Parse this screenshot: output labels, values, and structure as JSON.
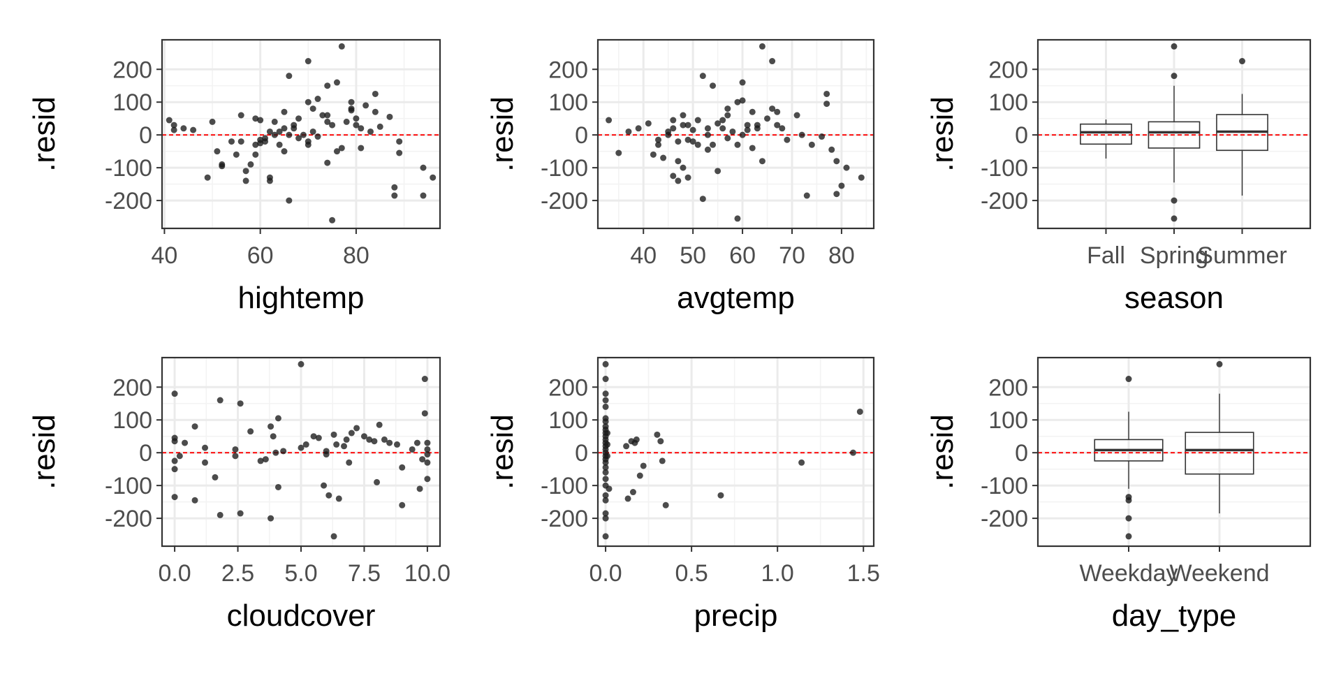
{
  "figure": {
    "reference_line_color": "#ff0000",
    "point_color": "#1a1a1a",
    "panel_background": "#ffffff",
    "grid_color": "#ebebeb"
  },
  "chart_data": [
    {
      "type": "scatter",
      "xlabel": "hightemp",
      "ylabel": ".resid",
      "xlim": [
        39.5,
        97.5
      ],
      "ylim": [
        -285,
        290
      ],
      "xticks": [
        40,
        60,
        80
      ],
      "yticks": [
        -200,
        -100,
        0,
        100,
        200
      ],
      "hline": 0,
      "points": [
        [
          41,
          45
        ],
        [
          42,
          30
        ],
        [
          42,
          15
        ],
        [
          44,
          20
        ],
        [
          46,
          15
        ],
        [
          49,
          -130
        ],
        [
          50,
          40
        ],
        [
          51,
          -50
        ],
        [
          52,
          -90
        ],
        [
          52,
          -95
        ],
        [
          54,
          -20
        ],
        [
          55,
          -60
        ],
        [
          56,
          -20
        ],
        [
          56,
          60
        ],
        [
          57,
          -110
        ],
        [
          57,
          -140
        ],
        [
          58,
          -90
        ],
        [
          59,
          -60
        ],
        [
          59,
          -30
        ],
        [
          59,
          50
        ],
        [
          60,
          45
        ],
        [
          60,
          -15
        ],
        [
          60,
          -25
        ],
        [
          61,
          -20
        ],
        [
          61,
          -10
        ],
        [
          62,
          10
        ],
        [
          62,
          -130
        ],
        [
          62,
          -140
        ],
        [
          63,
          0
        ],
        [
          63,
          40
        ],
        [
          64,
          -30
        ],
        [
          64,
          10
        ],
        [
          65,
          -50
        ],
        [
          65,
          20
        ],
        [
          65,
          70
        ],
        [
          66,
          -200
        ],
        [
          66,
          180
        ],
        [
          66,
          0
        ],
        [
          67,
          30
        ],
        [
          67,
          20
        ],
        [
          68,
          50
        ],
        [
          68,
          -10
        ],
        [
          69,
          0
        ],
        [
          70,
          225
        ],
        [
          70,
          -20
        ],
        [
          70,
          -30
        ],
        [
          70,
          100
        ],
        [
          71,
          80
        ],
        [
          71,
          10
        ],
        [
          72,
          -5
        ],
        [
          72,
          110
        ],
        [
          73,
          60
        ],
        [
          74,
          60
        ],
        [
          74,
          40
        ],
        [
          74,
          -85
        ],
        [
          74,
          150
        ],
        [
          75,
          -260
        ],
        [
          75,
          30
        ],
        [
          76,
          -50
        ],
        [
          76,
          160
        ],
        [
          77,
          -40
        ],
        [
          77,
          270
        ],
        [
          78,
          40
        ],
        [
          79,
          80
        ],
        [
          79,
          100
        ],
        [
          79,
          75
        ],
        [
          80,
          50
        ],
        [
          80,
          30
        ],
        [
          81,
          -40
        ],
        [
          81,
          20
        ],
        [
          82,
          90
        ],
        [
          83,
          10
        ],
        [
          84,
          125
        ],
        [
          84,
          70
        ],
        [
          85,
          25
        ],
        [
          87,
          55
        ],
        [
          88,
          -160
        ],
        [
          88,
          -185
        ],
        [
          89,
          -20
        ],
        [
          89,
          -55
        ],
        [
          94,
          -100
        ],
        [
          94,
          -185
        ],
        [
          96,
          -130
        ]
      ]
    },
    {
      "type": "scatter",
      "xlabel": "avgtemp",
      "ylabel": ".resid",
      "xlim": [
        30.8,
        86.5
      ],
      "ylim": [
        -285,
        290
      ],
      "xticks": [
        40,
        50,
        60,
        70,
        80
      ],
      "yticks": [
        -200,
        -100,
        0,
        100,
        200
      ],
      "hline": 0,
      "points": [
        [
          33,
          45
        ],
        [
          35,
          -55
        ],
        [
          37,
          10
        ],
        [
          39,
          20
        ],
        [
          41,
          35
        ],
        [
          42,
          -60
        ],
        [
          43,
          -15
        ],
        [
          43,
          -30
        ],
        [
          44,
          -70
        ],
        [
          45,
          10
        ],
        [
          45,
          0
        ],
        [
          46,
          -125
        ],
        [
          46,
          20
        ],
        [
          46,
          45
        ],
        [
          47,
          -20
        ],
        [
          47,
          -80
        ],
        [
          47,
          -140
        ],
        [
          48,
          -100
        ],
        [
          48,
          30
        ],
        [
          48,
          60
        ],
        [
          49,
          30
        ],
        [
          49,
          -130
        ],
        [
          49,
          -15
        ],
        [
          50,
          15
        ],
        [
          50,
          -20
        ],
        [
          51,
          45
        ],
        [
          51,
          -30
        ],
        [
          52,
          180
        ],
        [
          52,
          -195
        ],
        [
          53,
          20
        ],
        [
          53,
          -45
        ],
        [
          53,
          0
        ],
        [
          54,
          150
        ],
        [
          54,
          -30
        ],
        [
          55,
          35
        ],
        [
          55,
          -110
        ],
        [
          56,
          45
        ],
        [
          56,
          20
        ],
        [
          57,
          80
        ],
        [
          57,
          60
        ],
        [
          57,
          -10
        ],
        [
          58,
          10
        ],
        [
          59,
          -255
        ],
        [
          59,
          -30
        ],
        [
          59,
          100
        ],
        [
          60,
          0
        ],
        [
          60,
          160
        ],
        [
          60,
          105
        ],
        [
          61,
          15
        ],
        [
          61,
          30
        ],
        [
          62,
          -40
        ],
        [
          62,
          70
        ],
        [
          63,
          30
        ],
        [
          63,
          20
        ],
        [
          64,
          270
        ],
        [
          64,
          -80
        ],
        [
          65,
          50
        ],
        [
          66,
          80
        ],
        [
          66,
          225
        ],
        [
          67,
          30
        ],
        [
          67,
          70
        ],
        [
          68,
          20
        ],
        [
          69,
          -15
        ],
        [
          71,
          60
        ],
        [
          72,
          0
        ],
        [
          73,
          -185
        ],
        [
          74,
          -30
        ],
        [
          76,
          -5
        ],
        [
          77,
          95
        ],
        [
          77,
          125
        ],
        [
          78,
          -45
        ],
        [
          79,
          -180
        ],
        [
          79,
          -80
        ],
        [
          80,
          -155
        ],
        [
          81,
          -100
        ],
        [
          84,
          -130
        ]
      ]
    },
    {
      "type": "box",
      "xlabel": "season",
      "ylabel": ".resid",
      "ylim": [
        -285,
        290
      ],
      "yticks": [
        -200,
        -100,
        0,
        100,
        200
      ],
      "hline": 0,
      "categories": [
        "Fall",
        "Spring",
        "Summer"
      ],
      "boxes": [
        {
          "q1": -28,
          "median": 8,
          "q3": 33,
          "lower": -72,
          "upper": 47,
          "outliers": []
        },
        {
          "q1": -40,
          "median": 8,
          "q3": 40,
          "lower": -145,
          "upper": 150,
          "outliers": [
            270,
            180,
            -200,
            -255
          ]
        },
        {
          "q1": -47,
          "median": 10,
          "q3": 62,
          "lower": -185,
          "upper": 125,
          "outliers": [
            225
          ]
        }
      ]
    },
    {
      "type": "scatter",
      "xlabel": "cloudcover",
      "ylabel": ".resid",
      "xlim": [
        -0.5,
        10.5
      ],
      "ylim": [
        -285,
        290
      ],
      "xticks": [
        0.0,
        2.5,
        5.0,
        7.5,
        10.0
      ],
      "xticklabels": [
        "0.0",
        "2.5",
        "5.0",
        "7.5",
        "10.0"
      ],
      "yticks": [
        -200,
        -100,
        0,
        100,
        200
      ],
      "hline": 0,
      "points": [
        [
          0,
          180
        ],
        [
          0,
          45
        ],
        [
          0,
          35
        ],
        [
          0,
          -25
        ],
        [
          0,
          -50
        ],
        [
          0,
          -135
        ],
        [
          0.2,
          -10
        ],
        [
          0.4,
          30
        ],
        [
          0.8,
          80
        ],
        [
          0.8,
          -145
        ],
        [
          1.2,
          15
        ],
        [
          1.2,
          -30
        ],
        [
          1.6,
          -75
        ],
        [
          1.8,
          160
        ],
        [
          1.8,
          -190
        ],
        [
          2.4,
          10
        ],
        [
          2.4,
          -10
        ],
        [
          2.6,
          150
        ],
        [
          2.6,
          -185
        ],
        [
          3,
          65
        ],
        [
          3.4,
          -25
        ],
        [
          3.6,
          -20
        ],
        [
          3.8,
          80
        ],
        [
          3.8,
          -200
        ],
        [
          3.9,
          50
        ],
        [
          4,
          0
        ],
        [
          4.1,
          105
        ],
        [
          4.1,
          -105
        ],
        [
          4.3,
          5
        ],
        [
          5,
          270
        ],
        [
          5,
          15
        ],
        [
          5.2,
          25
        ],
        [
          5.5,
          50
        ],
        [
          5.7,
          45
        ],
        [
          5.9,
          -100
        ],
        [
          6,
          -5
        ],
        [
          6,
          5
        ],
        [
          6.1,
          -130
        ],
        [
          6.3,
          55
        ],
        [
          6.3,
          -255
        ],
        [
          6.4,
          25
        ],
        [
          6.5,
          -140
        ],
        [
          6.7,
          20
        ],
        [
          6.8,
          40
        ],
        [
          6.9,
          -30
        ],
        [
          7,
          60
        ],
        [
          7.2,
          75
        ],
        [
          7.5,
          50
        ],
        [
          7.7,
          40
        ],
        [
          7.9,
          35
        ],
        [
          8,
          -90
        ],
        [
          8.1,
          85
        ],
        [
          8.3,
          40
        ],
        [
          8.5,
          30
        ],
        [
          8.8,
          25
        ],
        [
          9,
          -160
        ],
        [
          9,
          -45
        ],
        [
          9.4,
          10
        ],
        [
          9.6,
          30
        ],
        [
          9.7,
          -110
        ],
        [
          9.8,
          -20
        ],
        [
          9.9,
          225
        ],
        [
          9.9,
          120
        ],
        [
          10,
          30
        ],
        [
          10,
          -5
        ],
        [
          10,
          -30
        ],
        [
          10,
          -80
        ],
        [
          10,
          10
        ]
      ]
    },
    {
      "type": "scatter",
      "xlabel": "precip",
      "ylabel": ".resid",
      "xlim": [
        -0.045,
        1.56
      ],
      "ylim": [
        -285,
        290
      ],
      "xticks": [
        0.0,
        0.5,
        1.0,
        1.5
      ],
      "xticklabels": [
        "0.0",
        "0.5",
        "1.0",
        "1.5"
      ],
      "yticks": [
        -200,
        -100,
        0,
        100,
        200
      ],
      "hline": 0,
      "points": [
        [
          0,
          270
        ],
        [
          0,
          225
        ],
        [
          0,
          180
        ],
        [
          0,
          160
        ],
        [
          0,
          140
        ],
        [
          0,
          105
        ],
        [
          0,
          95
        ],
        [
          0,
          80
        ],
        [
          0,
          70
        ],
        [
          0,
          60
        ],
        [
          0,
          50
        ],
        [
          0,
          40
        ],
        [
          0,
          30
        ],
        [
          0,
          20
        ],
        [
          0,
          10
        ],
        [
          0,
          0
        ],
        [
          0,
          -10
        ],
        [
          0,
          -20
        ],
        [
          0,
          -30
        ],
        [
          0,
          -45
        ],
        [
          0,
          -60
        ],
        [
          0,
          -80
        ],
        [
          0,
          -100
        ],
        [
          0,
          -130
        ],
        [
          0,
          -145
        ],
        [
          0,
          -185
        ],
        [
          0,
          -200
        ],
        [
          0,
          -255
        ],
        [
          0.01,
          60
        ],
        [
          0.01,
          -10
        ],
        [
          0.01,
          25
        ],
        [
          0.02,
          -110
        ],
        [
          0.12,
          20
        ],
        [
          0.13,
          -140
        ],
        [
          0.15,
          35
        ],
        [
          0.16,
          -120
        ],
        [
          0.17,
          30
        ],
        [
          0.18,
          40
        ],
        [
          0.2,
          -70
        ],
        [
          0.22,
          -40
        ],
        [
          0.3,
          55
        ],
        [
          0.32,
          35
        ],
        [
          0.33,
          -25
        ],
        [
          0.35,
          -160
        ],
        [
          0.67,
          -130
        ],
        [
          1.14,
          -30
        ],
        [
          1.44,
          0
        ],
        [
          1.48,
          125
        ]
      ]
    },
    {
      "type": "box",
      "xlabel": "day_type",
      "ylabel": ".resid",
      "ylim": [
        -285,
        290
      ],
      "yticks": [
        -200,
        -100,
        0,
        100,
        200
      ],
      "hline": 0,
      "categories": [
        "Weekday",
        "Weekend"
      ],
      "boxes": [
        {
          "q1": -25,
          "median": 8,
          "q3": 40,
          "lower": -110,
          "upper": 125,
          "outliers": [
            225,
            -135,
            -145,
            -200,
            -255
          ]
        },
        {
          "q1": -65,
          "median": 8,
          "q3": 62,
          "lower": -185,
          "upper": 180,
          "outliers": [
            270
          ]
        }
      ]
    }
  ]
}
